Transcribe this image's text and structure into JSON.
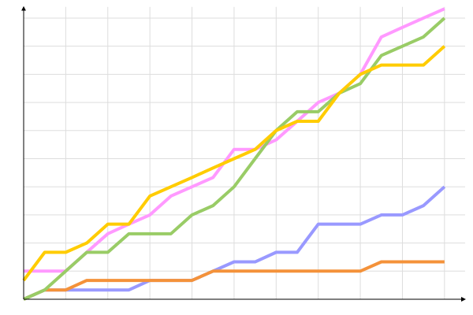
{
  "chart_data": {
    "type": "line",
    "x": [
      0,
      0.5,
      1,
      1.5,
      2,
      2.5,
      3,
      3.5,
      4,
      4.5,
      5,
      5.5,
      6,
      6.5,
      7,
      7.5,
      8,
      8.5,
      9,
      9.5,
      10
    ],
    "series": [
      {
        "color": "#9999ff",
        "values": [
          0,
          0.33,
          0.33,
          0.33,
          0.33,
          0.33,
          0.67,
          0.67,
          0.67,
          1,
          1.33,
          1.33,
          1.67,
          1.67,
          2.67,
          2.67,
          2.67,
          3,
          3,
          3.33,
          4
        ]
      },
      {
        "color": "#f4923a",
        "values": [
          0,
          0.33,
          0.33,
          0.67,
          0.67,
          0.67,
          0.67,
          0.67,
          0.67,
          1,
          1,
          1,
          1,
          1,
          1,
          1,
          1,
          1.33,
          1.33,
          1.33,
          1.33
        ]
      },
      {
        "color": "#ff99ff",
        "values": [
          1,
          1,
          1,
          1.67,
          2.33,
          2.67,
          3,
          3.67,
          4,
          4.33,
          5.33,
          5.33,
          5.67,
          6.33,
          7,
          7.33,
          8,
          9.33,
          9.67,
          10,
          10.33
        ]
      },
      {
        "color": "#99cc66",
        "values": [
          0,
          0.33,
          1,
          1.67,
          1.67,
          2.33,
          2.33,
          2.33,
          3,
          3.33,
          4,
          5,
          6,
          6.67,
          6.67,
          7.33,
          7.67,
          8.67,
          9,
          9.33,
          10
        ]
      },
      {
        "color": "#ffcc00",
        "values": [
          0.67,
          1.67,
          1.67,
          2,
          2.67,
          2.67,
          3.67,
          4,
          4.33,
          4.67,
          5,
          5.33,
          6,
          6.33,
          6.33,
          7.33,
          8,
          8.33,
          8.33,
          8.33,
          9
        ]
      }
    ],
    "xlim": [
      0,
      10.49
    ],
    "ylim": [
      0,
      10.4
    ],
    "xticks": [
      0,
      1,
      2,
      3,
      4,
      5,
      6,
      7,
      8,
      9,
      10
    ],
    "yticks": [
      0,
      1,
      2,
      3,
      4,
      5,
      6,
      7,
      8,
      9,
      10
    ],
    "grid": true
  }
}
